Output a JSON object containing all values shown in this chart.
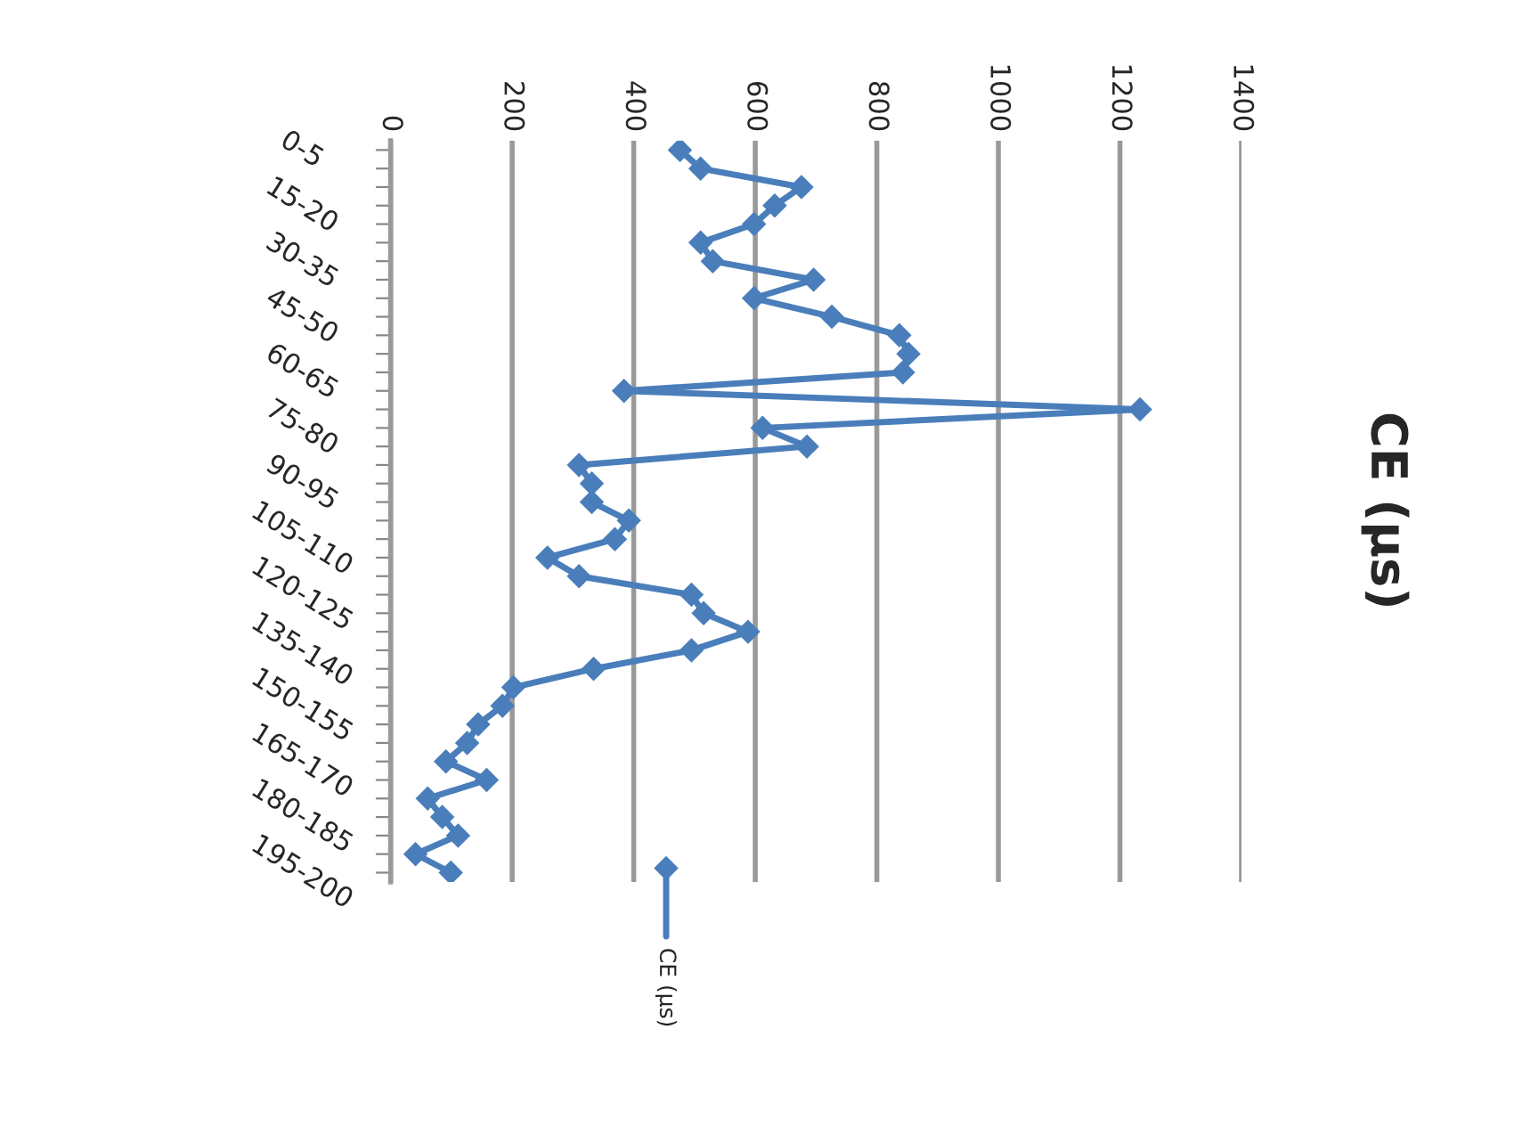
{
  "chart_data": {
    "type": "line",
    "title": "CE (µs)",
    "categories": [
      "0-5",
      null,
      null,
      "15-20",
      null,
      null,
      "30-35",
      null,
      null,
      "45-50",
      null,
      null,
      "60-65",
      null,
      null,
      "75-80",
      null,
      null,
      "90-95",
      null,
      null,
      "105-110",
      null,
      null,
      "120-125",
      null,
      null,
      "135-140",
      null,
      null,
      "150-155",
      null,
      null,
      "165-170",
      null,
      null,
      "180-185",
      null,
      null,
      "195-200"
    ],
    "series": [
      {
        "name": "CE (µs)",
        "color": "#4a7ebb",
        "values": [
          476,
          510,
          676,
          632,
          598,
          510,
          530,
          696,
          598,
          726,
          837,
          852,
          843,
          384,
          1233,
          612,
          685,
          310,
          331,
          331,
          392,
          369,
          258,
          310,
          495,
          515,
          588,
          495,
          334,
          202,
          184,
          144,
          126,
          91,
          158,
          61,
          85,
          111,
          41,
          99
        ]
      }
    ],
    "orientation": "horizontal",
    "xlim": [
      0,
      1400
    ],
    "xticks": [
      0,
      200,
      400,
      600,
      800,
      1000,
      1200,
      1400
    ],
    "grid": "x",
    "legend": "bottom",
    "marker": "diamond",
    "line_style": "solid"
  }
}
